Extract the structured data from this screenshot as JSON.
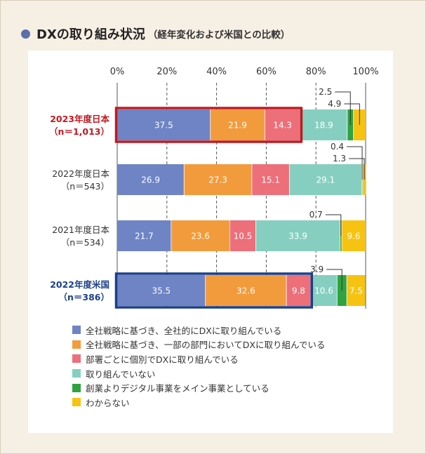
{
  "header": {
    "title": "DXの取り組み状況",
    "subtitle": "（経年変化および米国との比較）"
  },
  "chart_data": {
    "type": "bar",
    "orientation": "horizontal",
    "stacked": true,
    "xlim": [
      0,
      100
    ],
    "x_ticks": [
      "0%",
      "20%",
      "40%",
      "60%",
      "80%",
      "100%"
    ],
    "grid": "dashed vertical",
    "legend_placement": "bottom",
    "categories": [
      {
        "label": "2023年度日本",
        "sub": "（n＝1,013）",
        "color": "#c1191f",
        "bold": true,
        "highlight": "#c1191f"
      },
      {
        "label": "2022年度日本",
        "sub": "（n＝543）",
        "color": "#333333",
        "bold": false,
        "highlight": ""
      },
      {
        "label": "2021年度日本",
        "sub": "（n＝534）",
        "color": "#333333",
        "bold": false,
        "highlight": ""
      },
      {
        "label": "2022年度米国",
        "sub": "（n＝386）",
        "color": "#1b3f8b",
        "bold": true,
        "highlight": "#1b3f8b"
      }
    ],
    "series": [
      {
        "name": "全社戦略に基づき、全社的にDXに取り組んでいる",
        "color": "#6e84c5",
        "values": [
          37.5,
          26.9,
          21.7,
          35.5
        ]
      },
      {
        "name": "全社戦略に基づき、一部の部門においてDXに取り組んでいる",
        "color": "#f29b3c",
        "values": [
          21.9,
          27.3,
          23.6,
          32.6
        ]
      },
      {
        "name": "部署ごとに個別でDXに取り組んでいる",
        "color": "#ec6f7a",
        "values": [
          14.3,
          15.1,
          10.5,
          9.8
        ]
      },
      {
        "name": "取り組んでいない",
        "color": "#86cfc0",
        "values": [
          18.9,
          29.1,
          33.9,
          10.6
        ]
      },
      {
        "name": "創業よりデジタル事業をメイン事業としている",
        "color": "#2fa33f",
        "values": [
          2.5,
          0.4,
          0.7,
          3.9
        ]
      },
      {
        "name": "わからない",
        "color": "#f7c313",
        "values": [
          4.9,
          1.3,
          9.6,
          7.5
        ]
      }
    ],
    "data_labels": [
      [
        "37.5",
        "21.9",
        "14.3",
        "18.9",
        "2.5",
        "4.9"
      ],
      [
        "26.9",
        "27.3",
        "15.1",
        "29.1",
        "0.4",
        "1.3"
      ],
      [
        "21.7",
        "23.6",
        "10.5",
        "33.9",
        "0.7",
        "9.6"
      ],
      [
        "35.5",
        "32.6",
        "9.8",
        "10.6",
        "3.9",
        "7.5"
      ]
    ]
  }
}
